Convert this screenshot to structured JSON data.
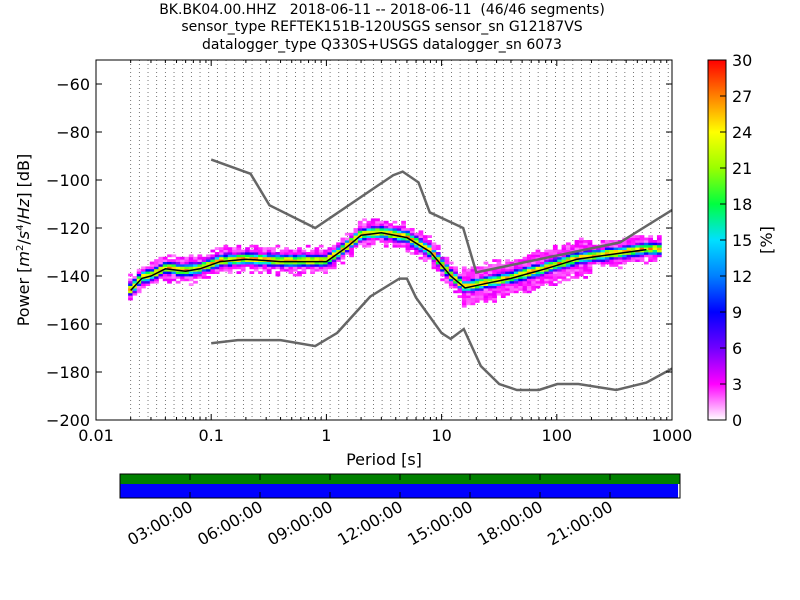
{
  "chart_data": [
    {
      "type": "heatmap",
      "title": [
        "BK.BK04.00.HHZ   2018-06-11 -- 2018-06-11  (46/46 segments)",
        "sensor_type REFTEK151B-120USGS sensor_sn G12187VS",
        "datalogger_type Q330S+USGS datalogger_sn 6073"
      ],
      "xlabel": "Period [s]",
      "xscale": "log",
      "xlim": [
        0.01,
        1000
      ],
      "xticks": [
        "0.01",
        "0.1",
        "1",
        "10",
        "100",
        "1000"
      ],
      "ylabel": "Power [m²/s⁴/Hz] [dB]",
      "ylim": [
        -200,
        -50
      ],
      "yticks": [
        -60,
        -80,
        -100,
        -120,
        -140,
        -160,
        -180,
        -200
      ],
      "grid": "dotted vertical lines at PSD periods",
      "colorbar": {
        "label": "[%]",
        "range": [
          0,
          30
        ],
        "ticks": [
          0,
          3,
          6,
          9,
          12,
          15,
          18,
          21,
          24,
          27,
          30
        ],
        "colormap": "pqlx"
      },
      "series": [
        {
          "name": "NHNM",
          "color": "#666666",
          "x": [
            0.1,
            0.22,
            0.32,
            0.8,
            3.8,
            4.6,
            6.3,
            7.9,
            15.4,
            20,
            354,
            1000
          ],
          "y": [
            -91.5,
            -97.4,
            -110.5,
            -120,
            -98,
            -96.5,
            -101,
            -113.5,
            -120,
            -138.5,
            -126,
            -112.5
          ]
        },
        {
          "name": "NLNM",
          "color": "#666666",
          "x": [
            0.1,
            0.17,
            0.4,
            0.8,
            1.24,
            2.4,
            4.3,
            5,
            6,
            10,
            12,
            15.6,
            21.9,
            31.6,
            45,
            70,
            101,
            154,
            328,
            600,
            1000
          ],
          "y": [
            -168,
            -166.7,
            -166.7,
            -169.2,
            -163.7,
            -148.6,
            -141.1,
            -141.1,
            -149,
            -163.8,
            -166.2,
            -162.1,
            -177.5,
            -185,
            -187.5,
            -187.5,
            -185,
            -185,
            -187.5,
            -184.4,
            -178.6
          ]
        },
        {
          "name": "mode",
          "color": "#000000",
          "x": [
            0.02,
            0.025,
            0.03,
            0.04,
            0.06,
            0.08,
            0.12,
            0.2,
            0.4,
            0.7,
            1.0,
            1.5,
            2,
            3,
            5,
            8,
            12,
            16,
            25,
            40,
            80,
            150,
            300,
            600
          ],
          "y": [
            -146,
            -141,
            -140,
            -137,
            -138,
            -137,
            -134,
            -133,
            -134,
            -134,
            -134,
            -128,
            -123,
            -122,
            -124,
            -130,
            -140,
            -145,
            -143,
            -141,
            -137,
            -133,
            -131,
            -129
          ]
        }
      ]
    },
    {
      "type": "timeline",
      "data_coverage": [
        "00:00:00",
        "23:55:00"
      ],
      "gaps": [
        [
          "23:55:00",
          "24:00:00"
        ]
      ],
      "tick_labels": [
        "03:00:00",
        "06:00:00",
        "09:00:00",
        "12:00:00",
        "15:00:00",
        "18:00:00",
        "21:00:00"
      ],
      "colors": {
        "coverage": "#0000ff",
        "available": "#008000"
      }
    }
  ]
}
